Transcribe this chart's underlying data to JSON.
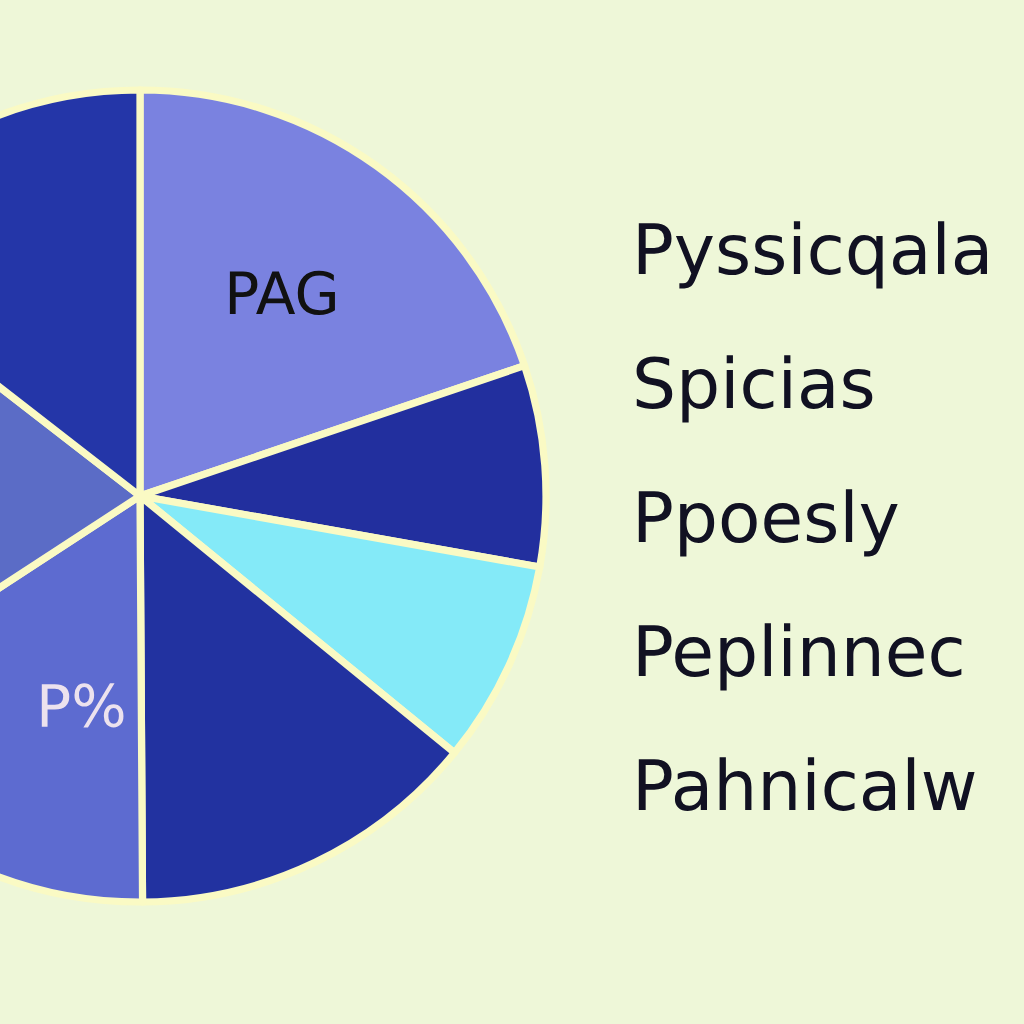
{
  "chart_data": {
    "type": "pie",
    "categories": [
      "PAG",
      null,
      null,
      null,
      "P%",
      null,
      null
    ],
    "values": [
      19.8,
      8.0,
      8.1,
      14.0,
      15.9,
      19.7,
      14.5
    ],
    "colors": [
      "#7a82e0",
      "#222f9e",
      "#84eaf8",
      "#2232a0",
      "#5d6bd0",
      "#5b6cc6",
      "#2436a8"
    ],
    "annotations": [
      "Pyssicqala",
      "Spicias",
      "Ppoesly",
      "Peplinnec",
      "Pahnicalw"
    ]
  }
}
